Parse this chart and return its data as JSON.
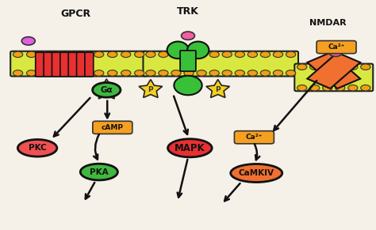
{
  "bg_color": "#f5f0e8",
  "border_color": "#333333",
  "receptor_colors": {
    "GPCR_fill": "#e83030",
    "TRK_fill": "#38c038",
    "NMDAR_fill": "#f07030",
    "oval_PKC": "#f05050",
    "oval_PKA": "#40b840",
    "oval_MAPK": "#e83030",
    "oval_CaMKIV": "#f07030",
    "oval_Ga": "#40b840",
    "star_color": "#f5d020",
    "camp_color": "#f5a020",
    "ca2_color": "#f5a020",
    "ligand_color": "#e060e0",
    "trk_ligand_color": "#f060a0",
    "nmdar_ligand_color": "#f060a0",
    "membrane_fill": "#d8e840",
    "membrane_dot": "#f0a010"
  },
  "labels": {
    "GPCR": [
      0.2,
      0.945
    ],
    "TRK": [
      0.5,
      0.955
    ],
    "NMDAR": [
      0.875,
      0.905
    ]
  }
}
